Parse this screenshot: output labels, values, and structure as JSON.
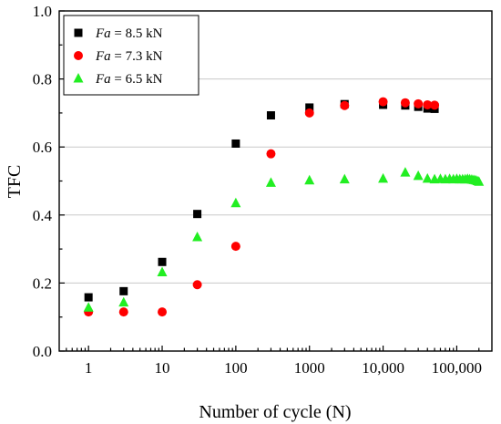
{
  "chart_data": {
    "type": "scatter",
    "xscale": "log",
    "xlim": [
      0.4,
      300000
    ],
    "ylim": [
      0.0,
      1.0
    ],
    "xlabel": "Number of cycle (N)",
    "ylabel": "TFC",
    "grid": "horizontal",
    "legend_position": "top-left",
    "x_ticks": [
      {
        "value": 1,
        "label": "1"
      },
      {
        "value": 10,
        "label": "10"
      },
      {
        "value": 100,
        "label": "100"
      },
      {
        "value": 1000,
        "label": "1000"
      },
      {
        "value": 10000,
        "label": "10,000"
      },
      {
        "value": 100000,
        "label": "100,000"
      }
    ],
    "y_ticks": [
      {
        "value": 0.0,
        "label": "0.0"
      },
      {
        "value": 0.2,
        "label": "0.2"
      },
      {
        "value": 0.4,
        "label": "0.4"
      },
      {
        "value": 0.6,
        "label": "0.6"
      },
      {
        "value": 0.8,
        "label": "0.8"
      },
      {
        "value": 1.0,
        "label": "1.0"
      }
    ],
    "series": [
      {
        "name_italic": "Fa",
        "name_rest": " = 8.5 kN",
        "marker": "square",
        "color": "#000000",
        "points": [
          [
            1,
            0.158
          ],
          [
            3,
            0.176
          ],
          [
            10,
            0.262
          ],
          [
            30,
            0.403
          ],
          [
            100,
            0.61
          ],
          [
            300,
            0.693
          ],
          [
            1000,
            0.716
          ],
          [
            3000,
            0.726
          ],
          [
            10000,
            0.724
          ],
          [
            20000,
            0.722
          ],
          [
            30000,
            0.718
          ],
          [
            40000,
            0.713
          ],
          [
            50000,
            0.712
          ]
        ]
      },
      {
        "name_italic": "Fa",
        "name_rest": " = 7.3 kN",
        "marker": "circle",
        "color": "#ff0000",
        "points": [
          [
            1,
            0.115
          ],
          [
            3,
            0.115
          ],
          [
            10,
            0.115
          ],
          [
            30,
            0.195
          ],
          [
            100,
            0.308
          ],
          [
            300,
            0.58
          ],
          [
            1000,
            0.7
          ],
          [
            3000,
            0.722
          ],
          [
            10000,
            0.733
          ],
          [
            20000,
            0.73
          ],
          [
            30000,
            0.727
          ],
          [
            40000,
            0.724
          ],
          [
            50000,
            0.723
          ]
        ]
      },
      {
        "name_italic": "Fa",
        "name_rest": " = 6.5 kN",
        "marker": "triangle",
        "color": "#22ee22",
        "points": [
          [
            1,
            0.128
          ],
          [
            3,
            0.143
          ],
          [
            10,
            0.232
          ],
          [
            30,
            0.335
          ],
          [
            100,
            0.435
          ],
          [
            300,
            0.495
          ],
          [
            1000,
            0.502
          ],
          [
            3000,
            0.505
          ],
          [
            10000,
            0.507
          ],
          [
            20000,
            0.525
          ],
          [
            30000,
            0.515
          ],
          [
            40000,
            0.507
          ],
          [
            50000,
            0.505
          ],
          [
            60000,
            0.506
          ],
          [
            70000,
            0.505
          ],
          [
            80000,
            0.506
          ],
          [
            90000,
            0.505
          ],
          [
            100000,
            0.506
          ],
          [
            110000,
            0.505
          ],
          [
            120000,
            0.505
          ],
          [
            130000,
            0.505
          ],
          [
            140000,
            0.506
          ],
          [
            150000,
            0.505
          ],
          [
            160000,
            0.504
          ],
          [
            170000,
            0.503
          ],
          [
            180000,
            0.502
          ],
          [
            190000,
            0.5
          ],
          [
            200000,
            0.498
          ]
        ]
      }
    ]
  }
}
